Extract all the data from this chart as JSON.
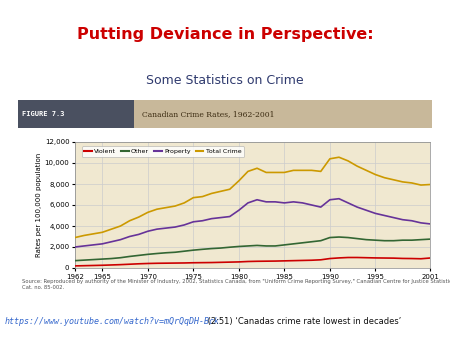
{
  "title1": "Putting Deviance in Perspective:",
  "title2": "Some Statistics on Crime",
  "figure_label": "FIGURE 7.3",
  "figure_subtitle": "Canadian Crime Rates, 1962-2001",
  "link_text": "https://www.youtube.com/watch?v=mQrQqDH-Bck",
  "link_suffix": " (2:51) ‘Canadas crime rate lowest in decades’",
  "source_text": "Source: Reproduced by authority of the Minister of Industry, 2002, Statistics Canada, from \"Uniform Crime Reporting Survey,\" Canadian Centre for Justice Statistics, Juristat,\nCat. no. 85-002.",
  "years": [
    1962,
    1963,
    1964,
    1965,
    1966,
    1967,
    1968,
    1969,
    1970,
    1971,
    1972,
    1973,
    1974,
    1975,
    1976,
    1977,
    1978,
    1979,
    1980,
    1981,
    1982,
    1983,
    1984,
    1985,
    1986,
    1987,
    1988,
    1989,
    1990,
    1991,
    1992,
    1993,
    1994,
    1995,
    1996,
    1997,
    1998,
    1999,
    2000,
    2001
  ],
  "violent": [
    200,
    220,
    240,
    260,
    290,
    320,
    360,
    400,
    430,
    450,
    460,
    470,
    480,
    500,
    510,
    520,
    540,
    560,
    580,
    620,
    640,
    650,
    660,
    680,
    700,
    720,
    740,
    780,
    900,
    960,
    1000,
    1000,
    980,
    960,
    950,
    940,
    910,
    900,
    880,
    950
  ],
  "other": [
    700,
    750,
    800,
    850,
    900,
    980,
    1100,
    1200,
    1300,
    1380,
    1450,
    1500,
    1600,
    1700,
    1780,
    1850,
    1900,
    1980,
    2050,
    2100,
    2150,
    2100,
    2100,
    2200,
    2300,
    2400,
    2500,
    2600,
    2900,
    2950,
    2900,
    2800,
    2700,
    2650,
    2600,
    2600,
    2650,
    2650,
    2700,
    2750
  ],
  "property": [
    2000,
    2100,
    2200,
    2300,
    2500,
    2700,
    3000,
    3200,
    3500,
    3700,
    3800,
    3900,
    4100,
    4400,
    4500,
    4700,
    4800,
    4900,
    5500,
    6200,
    6500,
    6300,
    6300,
    6200,
    6300,
    6200,
    6000,
    5800,
    6500,
    6600,
    6200,
    5800,
    5500,
    5200,
    5000,
    4800,
    4600,
    4500,
    4300,
    4200
  ],
  "total": [
    2900,
    3100,
    3250,
    3400,
    3700,
    4000,
    4500,
    4850,
    5300,
    5600,
    5750,
    5900,
    6200,
    6700,
    6800,
    7100,
    7300,
    7500,
    8300,
    9200,
    9500,
    9100,
    9100,
    9100,
    9300,
    9300,
    9300,
    9200,
    10400,
    10550,
    10200,
    9700,
    9300,
    8900,
    8600,
    8400,
    8200,
    8100,
    7900,
    7950
  ],
  "violent_color": "#cc0000",
  "other_color": "#336633",
  "property_color": "#663399",
  "total_color": "#cc9900",
  "bg_chart": "#f0e8d0",
  "bg_header_left": "#5a6070",
  "bg_header_right": "#c8b89a",
  "bg_footer": "#7aacb0",
  "bg_outer": "#d8cdb8",
  "ylabel": "Rates per 100,000 population",
  "ylim": [
    0,
    12000
  ],
  "yticks": [
    0,
    2000,
    4000,
    6000,
    8000,
    10000,
    12000
  ],
  "title1_color": "#cc0000",
  "title2_color": "#2f3a6e",
  "link_color": "#3366cc"
}
